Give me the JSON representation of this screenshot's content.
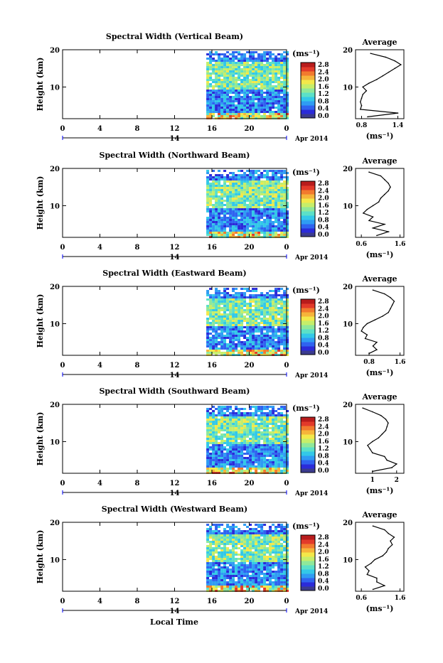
{
  "figure": {
    "xlabel": "Local Time",
    "date_label": "Apr 2014",
    "day_label": "14",
    "unit_label": "(ms⁻¹)",
    "ylabel": "Height (km)",
    "avg_title": "Average"
  },
  "colorscale": {
    "colors": [
      "#3b3b8f",
      "#2b2bd9",
      "#2f63f0",
      "#2f9cf3",
      "#33c8e8",
      "#5be0c8",
      "#8fe89a",
      "#c6ee6a",
      "#f3e84a",
      "#f6b43a",
      "#f27a2e",
      "#e23a2a",
      "#b81c1c"
    ],
    "labels": [
      "2.8",
      "2.4",
      "2.0",
      "1.6",
      "1.2",
      "0.8",
      "0.4",
      "0.0"
    ]
  },
  "chart_data": [
    {
      "type": "heatmap",
      "title": "Spectral Width (Vertical Beam)",
      "x_ticks": [
        "0",
        "4",
        "8",
        "12",
        "16",
        "20",
        "0"
      ],
      "xlim": [
        0,
        24
      ],
      "ylim": [
        1.5,
        20
      ],
      "y_ticks": [
        "20",
        "10"
      ],
      "data_x_range": [
        15.4,
        24
      ],
      "avg_profile": {
        "type": "line",
        "xlim": [
          0.7,
          1.5
        ],
        "x_ticks": [
          "0.8",
          "1.4"
        ],
        "xlabel": "(ms⁻¹)",
        "heights": [
          2,
          3,
          4,
          5,
          6,
          7,
          8,
          9,
          10,
          11,
          12,
          13,
          14,
          15,
          16,
          17,
          18,
          19
        ],
        "values": [
          0.9,
          1.4,
          0.78,
          0.8,
          0.78,
          0.8,
          0.82,
          0.88,
          0.82,
          0.92,
          1.05,
          1.15,
          1.25,
          1.35,
          1.45,
          1.35,
          1.2,
          0.95
        ]
      }
    },
    {
      "type": "heatmap",
      "title": "Spectral Width (Northward Beam)",
      "x_ticks": [
        "0",
        "4",
        "8",
        "12",
        "16",
        "20",
        "0"
      ],
      "xlim": [
        0,
        24
      ],
      "ylim": [
        1.5,
        20
      ],
      "y_ticks": [
        "20",
        "10"
      ],
      "data_x_range": [
        15.4,
        24
      ],
      "avg_profile": {
        "type": "line",
        "xlim": [
          0.45,
          1.7
        ],
        "x_ticks": [
          "0.6",
          "1.6"
        ],
        "xlabel": "(ms⁻¹)",
        "heights": [
          2,
          3,
          4,
          5,
          6,
          7,
          8,
          9,
          10,
          11,
          12,
          13,
          14,
          15,
          16,
          17,
          18,
          19
        ],
        "values": [
          1.0,
          1.3,
          0.9,
          1.2,
          0.8,
          0.9,
          0.65,
          0.75,
          0.9,
          1.05,
          1.1,
          1.2,
          1.3,
          1.35,
          1.3,
          1.2,
          1.1,
          0.8
        ]
      }
    },
    {
      "type": "heatmap",
      "title": "Spectral Width (Eastward Beam)",
      "x_ticks": [
        "0",
        "4",
        "8",
        "12",
        "16",
        "20",
        "0"
      ],
      "xlim": [
        0,
        24
      ],
      "ylim": [
        1.5,
        20
      ],
      "y_ticks": [
        "20",
        "10"
      ],
      "data_x_range": [
        15.4,
        24
      ],
      "avg_profile": {
        "type": "line",
        "xlim": [
          0.45,
          1.7
        ],
        "x_ticks": [
          "0.8",
          "1.6"
        ],
        "xlabel": "(ms⁻¹)",
        "heights": [
          2,
          3,
          4,
          5,
          6,
          7,
          8,
          9,
          10,
          11,
          12,
          13,
          14,
          15,
          16,
          17,
          18,
          19
        ],
        "values": [
          0.8,
          1.0,
          0.9,
          1.0,
          0.7,
          0.75,
          0.6,
          0.65,
          0.75,
          0.95,
          1.15,
          1.3,
          1.35,
          1.4,
          1.45,
          1.35,
          1.2,
          0.9
        ]
      }
    },
    {
      "type": "heatmap",
      "title": "Spectral Width (Southward Beam)",
      "x_ticks": [
        "0",
        "4",
        "8",
        "12",
        "16",
        "20",
        "0"
      ],
      "xlim": [
        0,
        24
      ],
      "ylim": [
        1.5,
        20
      ],
      "y_ticks": [
        "20",
        "10"
      ],
      "data_x_range": [
        15.4,
        24
      ],
      "avg_profile": {
        "type": "line",
        "xlim": [
          0.3,
          2.3
        ],
        "x_ticks": [
          "1",
          "2"
        ],
        "xlabel": "(ms⁻¹)",
        "heights": [
          2,
          3,
          4,
          5,
          6,
          7,
          8,
          9,
          10,
          11,
          12,
          13,
          14,
          15,
          16,
          17,
          18,
          19
        ],
        "values": [
          1.0,
          1.8,
          2.0,
          1.6,
          1.5,
          1.0,
          0.9,
          0.8,
          1.0,
          1.25,
          1.4,
          1.55,
          1.6,
          1.65,
          1.55,
          1.35,
          1.0,
          0.6
        ]
      }
    },
    {
      "type": "heatmap",
      "title": "Spectral Width (Westward Beam)",
      "x_ticks": [
        "0",
        "4",
        "8",
        "12",
        "16",
        "20",
        "0"
      ],
      "xlim": [
        0,
        24
      ],
      "ylim": [
        1.5,
        20
      ],
      "y_ticks": [
        "20",
        "10"
      ],
      "data_x_range": [
        15.4,
        24
      ],
      "avg_profile": {
        "type": "line",
        "xlim": [
          0.45,
          1.7
        ],
        "x_ticks": [
          "0.6",
          "1.6"
        ],
        "xlabel": "(ms⁻¹)",
        "heights": [
          2,
          3,
          4,
          5,
          6,
          7,
          8,
          9,
          10,
          11,
          12,
          13,
          14,
          15,
          16,
          17,
          18,
          19
        ],
        "values": [
          0.9,
          1.2,
          1.0,
          1.0,
          0.75,
          0.8,
          0.7,
          0.85,
          0.95,
          1.15,
          1.25,
          1.3,
          1.4,
          1.35,
          1.45,
          1.3,
          1.2,
          0.9
        ]
      }
    }
  ]
}
